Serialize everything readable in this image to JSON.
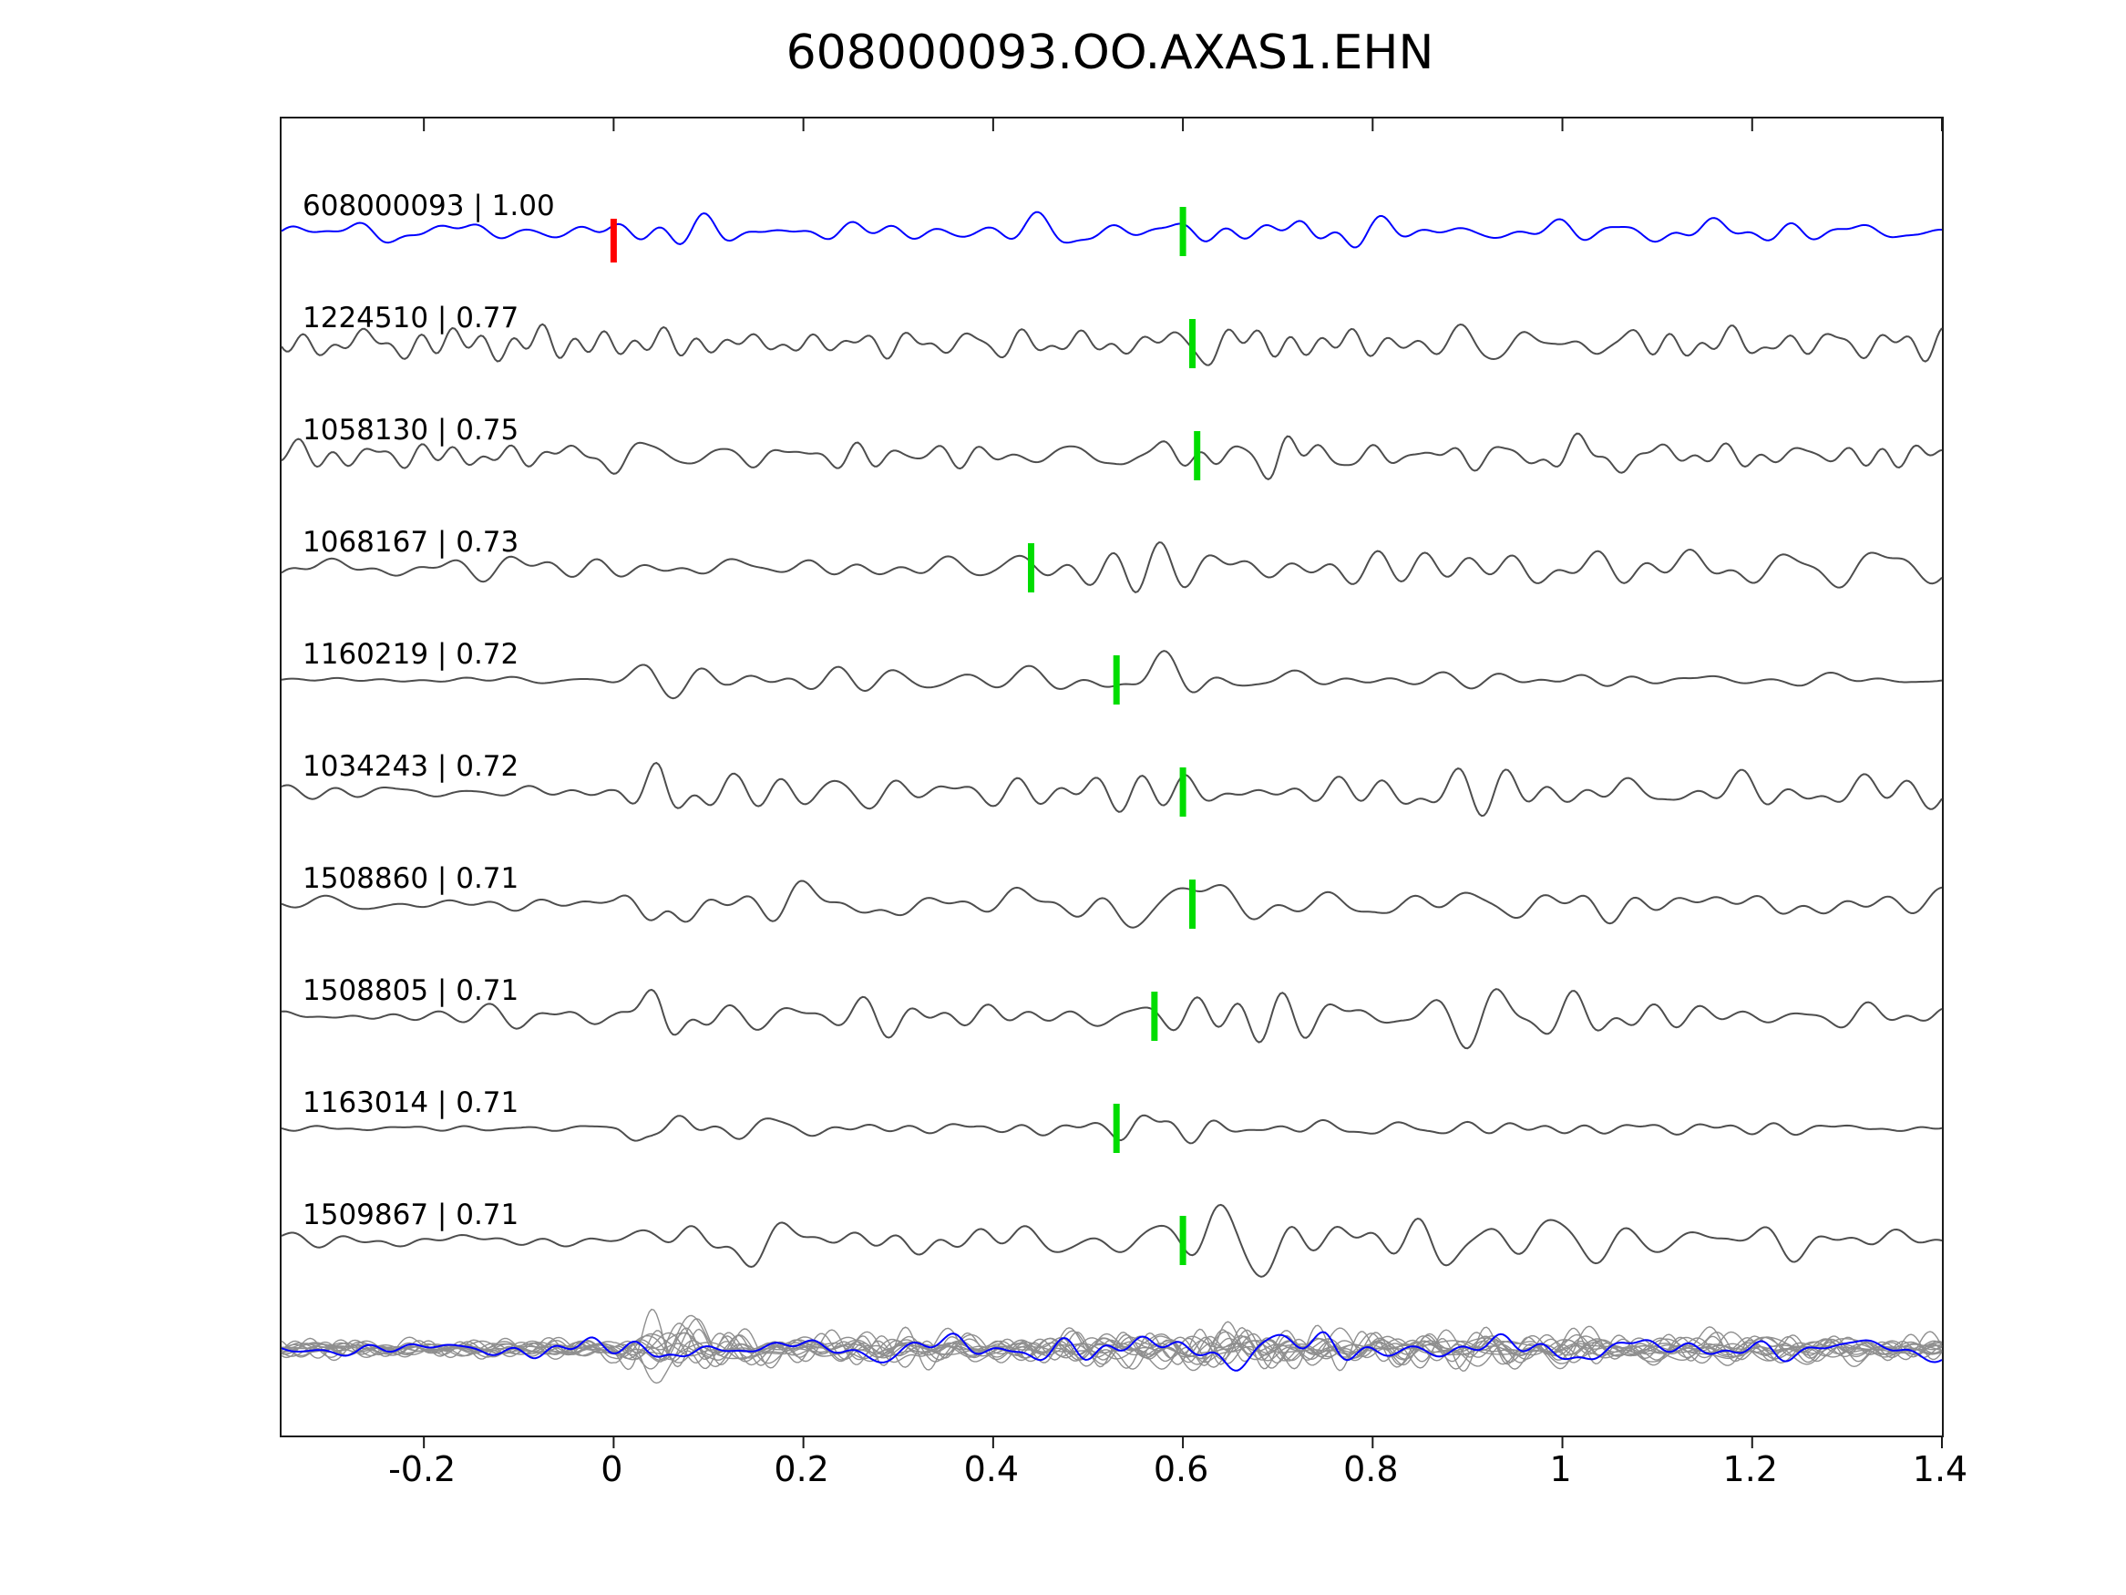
{
  "title": "608000093.OO.AXAS1.EHN",
  "colors": {
    "template_trace": "#0000ff",
    "match_trace": "#4d4d4d",
    "overlay_trace": "#8f8f8f",
    "overlay_template_trace": "#0000ff",
    "pick_marker": "#00dd00",
    "template_pick_marker": "#ff0000",
    "axis": "#1a1a1a",
    "text": "#000000"
  },
  "chart_data": {
    "type": "line",
    "title": "608000093.OO.AXAS1.EHN",
    "xlabel": "",
    "ylabel": "",
    "xlim": [
      -0.35,
      1.4
    ],
    "grid": false,
    "legend": "none",
    "x_ticks": [
      {
        "value": -0.2,
        "label": "-0.2"
      },
      {
        "value": 0,
        "label": "0"
      },
      {
        "value": 0.2,
        "label": "0.2"
      },
      {
        "value": 0.4,
        "label": "0.4"
      },
      {
        "value": 0.6,
        "label": "0.6"
      },
      {
        "value": 0.8,
        "label": "0.8"
      },
      {
        "value": 1,
        "label": "1"
      },
      {
        "value": 1.2,
        "label": "1.2"
      },
      {
        "value": 1.4,
        "label": "1.4"
      }
    ],
    "traces": [
      {
        "id": "608000093",
        "similarity": "1.00",
        "label": "608000093 | 1.00",
        "role": "template",
        "pick_time": 0.6,
        "template_pick_time": 0.0,
        "render": {
          "seed": 7,
          "f": [
            5,
            26
          ],
          "envelope": [
            [
              -0.35,
              6
            ],
            [
              0.4,
              6.5
            ],
            [
              0.55,
              7
            ],
            [
              0.68,
              9
            ],
            [
              0.73,
              13
            ],
            [
              0.8,
              7
            ],
            [
              1.4,
              6
            ]
          ]
        }
      },
      {
        "id": "1224510",
        "similarity": "0.77",
        "label": "1224510 | 0.77",
        "role": "match",
        "pick_time": 0.61,
        "render": {
          "seed": 21,
          "f": [
            7,
            34
          ],
          "envelope": [
            [
              -0.35,
              7
            ],
            [
              0.55,
              8
            ],
            [
              0.63,
              12
            ],
            [
              0.75,
              9
            ],
            [
              1.4,
              7
            ]
          ]
        }
      },
      {
        "id": "1058130",
        "similarity": "0.75",
        "label": "1058130 | 0.75",
        "role": "match",
        "pick_time": 0.615,
        "render": {
          "seed": 33,
          "f": [
            7,
            34
          ],
          "envelope": [
            [
              -0.35,
              7
            ],
            [
              0.6,
              8
            ],
            [
              0.7,
              15
            ],
            [
              0.78,
              9
            ],
            [
              1.4,
              7
            ]
          ]
        }
      },
      {
        "id": "1068167",
        "similarity": "0.73",
        "label": "1068167 | 0.73",
        "role": "match",
        "pick_time": 0.44,
        "render": {
          "seed": 44,
          "f": [
            4,
            22
          ],
          "envelope": [
            [
              -0.35,
              6
            ],
            [
              0,
              8
            ],
            [
              0.3,
              7
            ],
            [
              0.45,
              10
            ],
            [
              0.55,
              18
            ],
            [
              0.63,
              11
            ],
            [
              1.4,
              7
            ]
          ]
        }
      },
      {
        "id": "1160219",
        "similarity": "0.72",
        "label": "1160219 | 0.72",
        "role": "match",
        "pick_time": 0.53,
        "render": {
          "seed": 55,
          "f": [
            5,
            26
          ],
          "envelope": [
            [
              -0.35,
              2.5
            ],
            [
              -0.02,
              2.5
            ],
            [
              0.04,
              22
            ],
            [
              0.12,
              7
            ],
            [
              0.3,
              4
            ],
            [
              0.5,
              6
            ],
            [
              0.57,
              12
            ],
            [
              0.66,
              5
            ],
            [
              1.4,
              4
            ]
          ]
        }
      },
      {
        "id": "1034243",
        "similarity": "0.72",
        "label": "1034243 | 0.72",
        "role": "match",
        "pick_time": 0.6,
        "render": {
          "seed": 66,
          "f": [
            4,
            24
          ],
          "envelope": [
            [
              -0.35,
              3.5
            ],
            [
              0,
              4
            ],
            [
              0.05,
              20
            ],
            [
              0.13,
              9
            ],
            [
              0.4,
              7
            ],
            [
              0.6,
              13
            ],
            [
              0.7,
              9
            ],
            [
              0.88,
              11
            ],
            [
              1.4,
              7
            ]
          ]
        }
      },
      {
        "id": "1508860",
        "similarity": "0.71",
        "label": "1508860 | 0.71",
        "role": "match",
        "pick_time": 0.61,
        "render": {
          "seed": 77,
          "f": [
            4,
            24
          ],
          "envelope": [
            [
              -0.35,
              4
            ],
            [
              0,
              5
            ],
            [
              0.05,
              20
            ],
            [
              0.13,
              9
            ],
            [
              0.4,
              7
            ],
            [
              0.63,
              17
            ],
            [
              0.73,
              9
            ],
            [
              1.05,
              10
            ],
            [
              1.4,
              6
            ]
          ]
        }
      },
      {
        "id": "1508805",
        "similarity": "0.71",
        "label": "1508805 | 0.71",
        "role": "match",
        "pick_time": 0.57,
        "render": {
          "seed": 88,
          "f": [
            5,
            26
          ],
          "envelope": [
            [
              -0.35,
              4
            ],
            [
              0,
              5
            ],
            [
              0.05,
              24
            ],
            [
              0.13,
              9
            ],
            [
              0.5,
              8
            ],
            [
              0.6,
              12
            ],
            [
              0.75,
              11
            ],
            [
              1.4,
              6
            ]
          ]
        }
      },
      {
        "id": "1163014",
        "similarity": "0.71",
        "label": "1163014 | 0.71",
        "role": "match",
        "pick_time": 0.53,
        "render": {
          "seed": 99,
          "f": [
            5,
            26
          ],
          "envelope": [
            [
              -0.35,
              1.8
            ],
            [
              0,
              2.2
            ],
            [
              0.04,
              20
            ],
            [
              0.11,
              5
            ],
            [
              0.3,
              2.8
            ],
            [
              0.52,
              5
            ],
            [
              0.58,
              16
            ],
            [
              0.68,
              5
            ],
            [
              1.4,
              3
            ]
          ]
        }
      },
      {
        "id": "1509867",
        "similarity": "0.71",
        "label": "1509867 | 0.71",
        "role": "match",
        "pick_time": 0.6,
        "render": {
          "seed": 111,
          "f": [
            4,
            24
          ],
          "envelope": [
            [
              -0.35,
              3.5
            ],
            [
              0,
              4
            ],
            [
              0.06,
              20
            ],
            [
              0.16,
              10
            ],
            [
              0.45,
              7
            ],
            [
              0.63,
              17
            ],
            [
              0.75,
              10
            ],
            [
              1.4,
              6
            ]
          ]
        }
      }
    ],
    "overlay": {
      "count": 14,
      "render": {
        "seed_base": 200,
        "f": [
          5,
          26
        ],
        "envelope": [
          [
            -0.35,
            4
          ],
          [
            0,
            5
          ],
          [
            0.05,
            14
          ],
          [
            0.15,
            7
          ],
          [
            0.5,
            7
          ],
          [
            0.62,
            11
          ],
          [
            0.75,
            8
          ],
          [
            1.4,
            6
          ]
        ]
      },
      "template_overlay": {
        "seed": 301,
        "f": [
          5,
          26
        ],
        "envelope": [
          [
            -0.35,
            4
          ],
          [
            0,
            4.5
          ],
          [
            0.05,
            8
          ],
          [
            0.15,
            6
          ],
          [
            0.55,
            7
          ],
          [
            0.65,
            9
          ],
          [
            0.75,
            10
          ],
          [
            0.85,
            6
          ],
          [
            1.4,
            5
          ]
        ]
      }
    }
  },
  "layout_values": {
    "pick_marker_note": "green vertical bar at pick time on each trace; red bar at time 0 on template trace"
  }
}
